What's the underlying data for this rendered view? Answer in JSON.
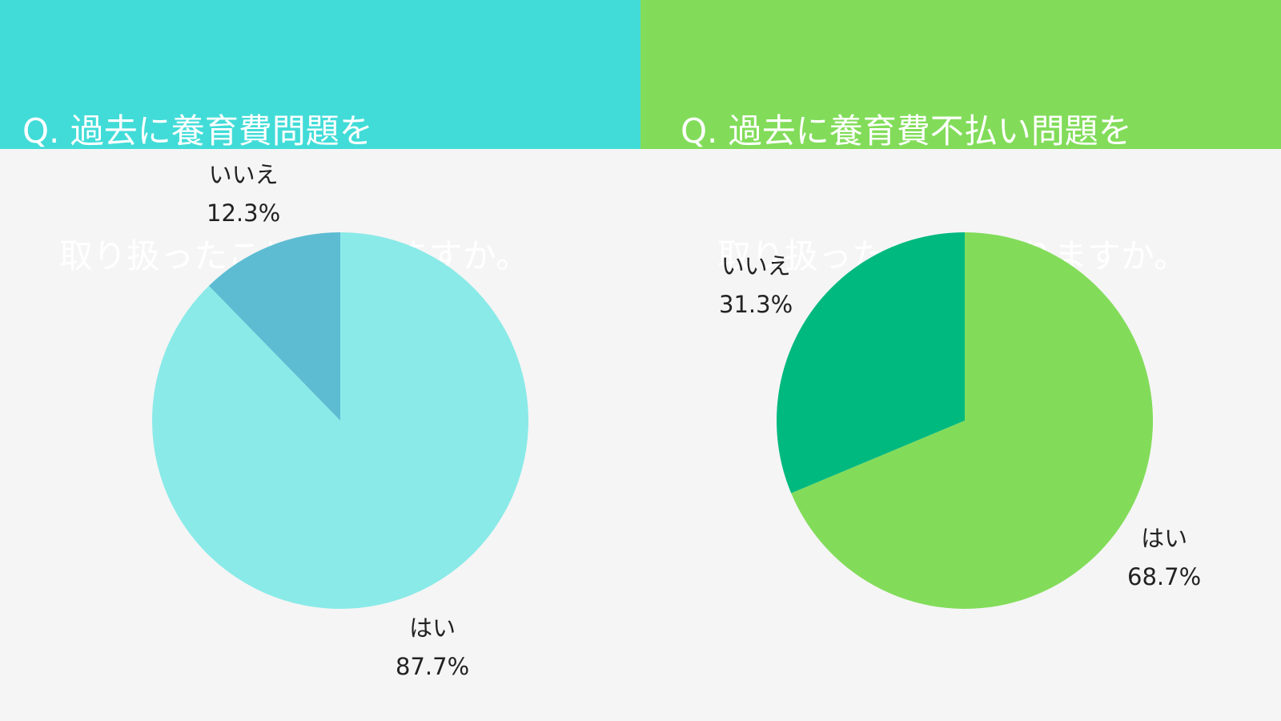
{
  "panels": [
    {
      "title_lines": [
        "Q. 過去に養育費問題を",
        "取り扱ったことはありますか。"
      ],
      "header_color": "#42dcd8"
    },
    {
      "title_lines": [
        "Q. 過去に養育費不払い問題を",
        "取り扱ったことはありますか。"
      ],
      "header_color": "#82dc5a"
    }
  ],
  "chart_data": [
    {
      "type": "pie",
      "categories": [
        "はい",
        "いいえ"
      ],
      "values": [
        87.7,
        12.3
      ],
      "value_labels": [
        "87.7%",
        "12.3%"
      ],
      "colors": [
        "#8aeae8",
        "#5dbcd2"
      ]
    },
    {
      "type": "pie",
      "categories": [
        "はい",
        "いいえ"
      ],
      "values": [
        68.7,
        31.3
      ],
      "value_labels": [
        "68.7%",
        "31.3%"
      ],
      "colors": [
        "#82dc5a",
        "#00b97f"
      ]
    }
  ]
}
